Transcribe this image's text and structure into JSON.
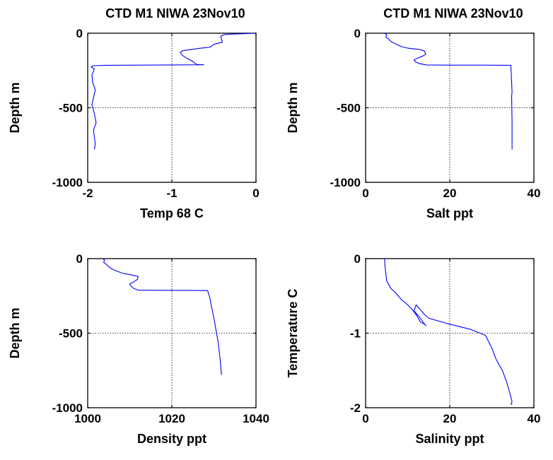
{
  "chart_data": [
    {
      "type": "line",
      "title": "CTD M1 NIWA 23Nov10",
      "xlabel": "Temp 68 C",
      "ylabel": "Depth m",
      "xlim": [
        -2,
        0
      ],
      "ylim": [
        -1000,
        0
      ],
      "xticks": [
        "-2",
        "-1",
        "0"
      ],
      "yticks": [
        "0",
        "-500",
        "-1000"
      ],
      "xtick_values": [
        -2,
        -1,
        0
      ],
      "ytick_values": [
        0,
        -500,
        -1000
      ],
      "grid": true,
      "series_color": "#0000ff",
      "series": [
        {
          "x": [
            -0.02,
            -0.1,
            -0.17,
            -0.3,
            -0.38,
            -0.42,
            -0.4,
            -0.5,
            -0.55,
            -0.65,
            -0.72,
            -0.78,
            -0.85,
            -0.88,
            -0.9,
            -0.87,
            -0.83,
            -0.8,
            -0.78,
            -0.75,
            -0.73,
            -0.7,
            -0.62,
            -1.0,
            -1.4,
            -1.8,
            -1.93,
            -1.96,
            -1.92,
            -1.95,
            -1.94,
            -1.91,
            -1.93,
            -1.95,
            -1.92,
            -1.9,
            -1.93,
            -1.92,
            -1.91,
            -1.92
          ],
          "y": [
            0,
            -2,
            -4,
            -6,
            -10,
            -20,
            -60,
            -75,
            -95,
            -100,
            -105,
            -110,
            -115,
            -120,
            -130,
            -150,
            -165,
            -175,
            -180,
            -190,
            -200,
            -210,
            -212,
            -213,
            -214,
            -215,
            -218,
            -225,
            -240,
            -280,
            -330,
            -380,
            -430,
            -480,
            -540,
            -600,
            -650,
            -700,
            -740,
            -780
          ]
        }
      ]
    },
    {
      "type": "line",
      "title": "CTD M1 NIWA 23Nov10",
      "xlabel": "Salt ppt",
      "ylabel": "Depth m",
      "xlim": [
        0,
        40
      ],
      "ylim": [
        -1000,
        0
      ],
      "xticks": [
        "0",
        "20",
        "40"
      ],
      "yticks": [
        "0",
        "-500",
        "-1000"
      ],
      "xtick_values": [
        0,
        20,
        40
      ],
      "ytick_values": [
        0,
        -500,
        -1000
      ],
      "grid": true,
      "series_color": "#0000ff",
      "series": [
        {
          "x": [
            4.5,
            5.0,
            4.8,
            5.5,
            6.0,
            7.0,
            8.5,
            10.0,
            11.5,
            13.0,
            14.0,
            14.3,
            13.5,
            12.5,
            11.5,
            12.0,
            13.0,
            14.5,
            20.0,
            28.0,
            34.5,
            34.6,
            34.7,
            34.8,
            34.7,
            34.8,
            34.8
          ],
          "y": [
            0,
            -10,
            -25,
            -40,
            -55,
            -70,
            -90,
            -100,
            -105,
            -110,
            -120,
            -140,
            -155,
            -165,
            -180,
            -195,
            -205,
            -213,
            -214,
            -214,
            -215,
            -260,
            -330,
            -400,
            -420,
            -600,
            -780
          ]
        }
      ]
    },
    {
      "type": "line",
      "title": "",
      "xlabel": "Density ppt",
      "ylabel": "Depth m",
      "xlim": [
        1000,
        1040
      ],
      "ylim": [
        -1000,
        0
      ],
      "xticks": [
        "1000",
        "1020",
        "1040"
      ],
      "yticks": [
        "0",
        "-500",
        "-1000"
      ],
      "xtick_values": [
        1000,
        1020,
        1040
      ],
      "ytick_values": [
        0,
        -500,
        -1000
      ],
      "grid": true,
      "series_color": "#0000ff",
      "series": [
        {
          "x": [
            1003.6,
            1004.0,
            1003.8,
            1004.5,
            1005.0,
            1005.8,
            1007.0,
            1008.5,
            1010.5,
            1012.0,
            1011.8,
            1011.0,
            1010.0,
            1010.3,
            1011.0,
            1012.0,
            1020.0,
            1028.5,
            1029.0,
            1029.5,
            1030.0,
            1030.5,
            1031.0,
            1031.5,
            1031.8
          ],
          "y": [
            0,
            -10,
            -25,
            -40,
            -55,
            -70,
            -85,
            -100,
            -110,
            -120,
            -140,
            -155,
            -170,
            -185,
            -200,
            -212,
            -213,
            -214,
            -260,
            -330,
            -400,
            -480,
            -560,
            -680,
            -780
          ]
        }
      ]
    },
    {
      "type": "line",
      "title": "",
      "xlabel": "Salinity ppt",
      "ylabel": "Temperature C",
      "xlim": [
        0,
        40
      ],
      "ylim": [
        -2,
        0
      ],
      "xticks": [
        "0",
        "20",
        "40"
      ],
      "yticks": [
        "0",
        "-1",
        "-2"
      ],
      "xtick_values": [
        0,
        20,
        40
      ],
      "ytick_values": [
        0,
        -1,
        -2
      ],
      "grid": true,
      "series_color": "#0000ff",
      "series": [
        {
          "x": [
            4.5,
            4.6,
            4.8,
            5.0,
            6.0,
            7.0,
            8.5,
            10.0,
            11.0,
            12.0,
            12.5,
            13.0,
            14.0,
            14.3,
            13.0,
            11.5,
            12.0,
            14.0,
            15.0,
            20.0,
            25.0,
            28.5,
            30.0,
            31.0,
            32.5,
            33.5,
            34.0,
            34.5,
            34.8,
            34.6,
            34.8
          ],
          "y": [
            0,
            -0.1,
            -0.2,
            -0.3,
            -0.4,
            -0.45,
            -0.55,
            -0.62,
            -0.68,
            -0.75,
            -0.8,
            -0.85,
            -0.88,
            -0.9,
            -0.8,
            -0.7,
            -0.62,
            -0.75,
            -0.8,
            -0.88,
            -0.95,
            -1.03,
            -1.2,
            -1.35,
            -1.5,
            -1.65,
            -1.75,
            -1.85,
            -1.92,
            -1.95,
            -1.96
          ]
        }
      ]
    }
  ]
}
